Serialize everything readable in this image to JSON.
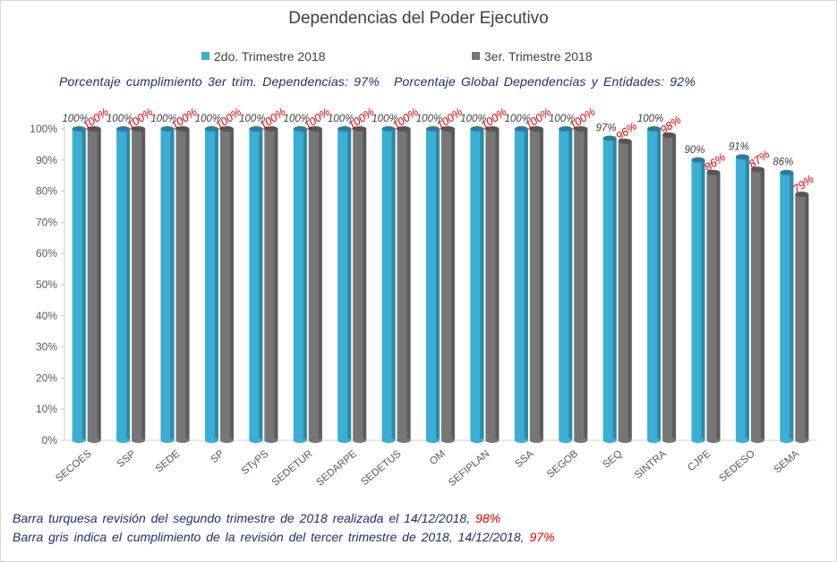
{
  "chart_data": {
    "type": "bar",
    "title": "Dependencias del Poder Ejecutivo",
    "categories": [
      "SECOES",
      "SSP",
      "SEDE",
      "SP",
      "STyPS",
      "SEDETUR",
      "SEDARPE",
      "SEDETUS",
      "OM",
      "SEFIPLAN",
      "SSA",
      "SEGOB",
      "SEQ",
      "SINTRA",
      "CJPE",
      "SEDESO",
      "SEMA"
    ],
    "series": [
      {
        "name": "2do. Trimestre 2018",
        "color": "#3aaed4",
        "label_color": "#404040",
        "values": [
          100,
          100,
          100,
          100,
          100,
          100,
          100,
          100,
          100,
          100,
          100,
          100,
          97,
          100,
          90,
          91,
          86
        ]
      },
      {
        "name": "3er. Trimestre 2018",
        "color": "#767676",
        "label_color": "#e00000",
        "values": [
          100,
          100,
          100,
          100,
          100,
          100,
          100,
          100,
          100,
          100,
          100,
          100,
          96,
          98,
          86,
          87,
          79
        ]
      }
    ],
    "value_labels": [
      [
        "100%",
        "100%",
        "100%",
        "100%",
        "100%",
        "100%",
        "100%",
        "100%",
        "100%",
        "100%",
        "100%",
        "100%",
        "97%",
        "100%",
        "90%",
        "91%",
        "86%"
      ],
      [
        "100%",
        "100%",
        "100%",
        "100%",
        "100%",
        "100%",
        "100%",
        "100%",
        "100%",
        "100%",
        "100%",
        "100%",
        "96%",
        "98%",
        "86%",
        "87%",
        "79%"
      ]
    ],
    "yticks": [
      "0%",
      "10%",
      "20%",
      "30%",
      "40%",
      "50%",
      "60%",
      "70%",
      "80%",
      "90%",
      "100%"
    ],
    "ylim": [
      0,
      100
    ],
    "xlabel": "",
    "ylabel": "",
    "legend_position": "top",
    "grid": false
  },
  "summary": {
    "dependencias": "Porcentaje cumplimiento 3er trim. Dependencias: 97%",
    "global": "Porcentaje Global Dependencias y Entidades: 92%"
  },
  "notes": {
    "line1_text": "Barra turquesa revisión del segundo trimestre de 2018 realizada el 14/12/2018,",
    "line1_value": "98%",
    "line2_text": "Barra gris indica el cumplimiento de la revisión del tercer trimestre de 2018, 14/12/2018,",
    "line2_value": "97%"
  }
}
